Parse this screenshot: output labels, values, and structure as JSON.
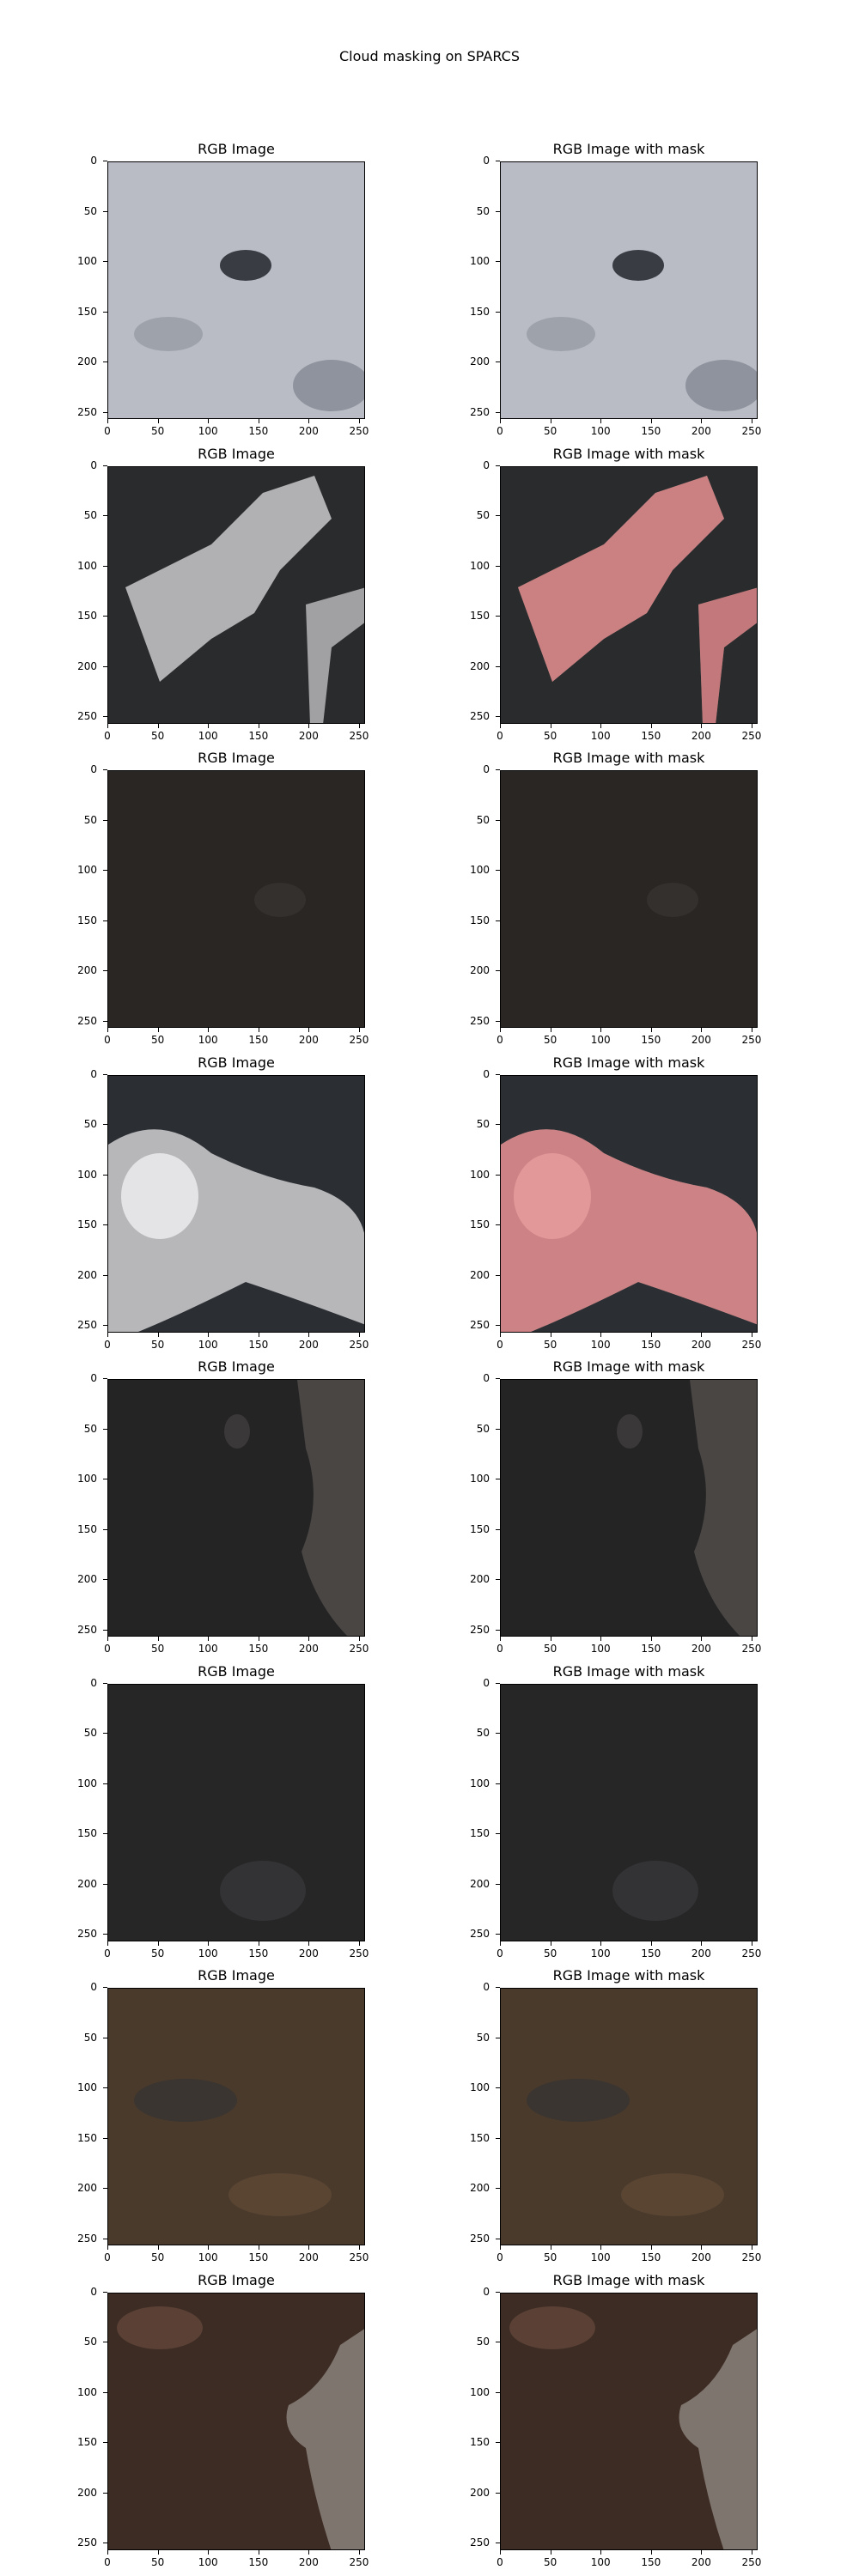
{
  "figure": {
    "title": "Cloud masking on SPARCS",
    "left_title": "RGB Image",
    "right_title": "RGB Image with mask",
    "yticks": [
      "0",
      "50",
      "100",
      "150",
      "200",
      "250"
    ],
    "xticks": [
      "0",
      "50",
      "100",
      "150",
      "200",
      "250"
    ],
    "mask_color": "#e05a5a"
  },
  "rows": [
    {
      "scene": "snow-ice",
      "base": "#b9bcc4",
      "mask": "none"
    },
    {
      "scene": "mountain-snow",
      "base": "#2a2b2c",
      "mask": "snow-branches"
    },
    {
      "scene": "dark-terrain",
      "base": "#2a2624",
      "mask": "none"
    },
    {
      "scene": "cumulus-clouds",
      "base": "#2b2f33",
      "mask": "large-cloud"
    },
    {
      "scene": "dark-coast",
      "base": "#252425",
      "mask": "none"
    },
    {
      "scene": "dark-fields",
      "base": "#262627",
      "mask": "none"
    },
    {
      "scene": "brown-terrain",
      "base": "#4a3a2c",
      "mask": "none"
    },
    {
      "scene": "brown-coast",
      "base": "#3d2c24",
      "mask": "none"
    }
  ]
}
